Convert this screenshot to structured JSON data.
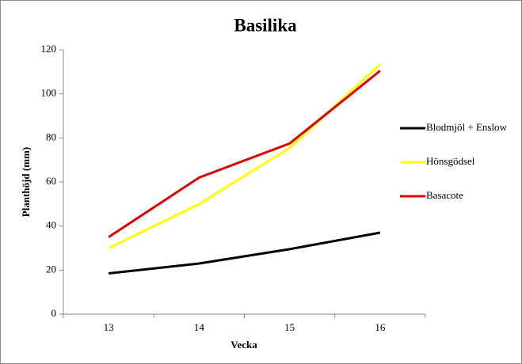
{
  "chart_data": {
    "type": "line",
    "title": "Basilika",
    "x_label": "Vecka",
    "y_label": "Planthöjd (mm)",
    "categories": [
      "13",
      "14",
      "15",
      "16"
    ],
    "series": [
      {
        "name": "Blodmjöl + Enslow",
        "color": "#000000",
        "values": [
          18.5,
          23,
          29.5,
          37
        ]
      },
      {
        "name": "Hönsgödsel",
        "color": "#ffff00",
        "values": [
          30,
          50,
          75.5,
          113.5
        ]
      },
      {
        "name": "Basacote",
        "color": "#e00000",
        "values": [
          35,
          62,
          77.5,
          110.5
        ]
      }
    ],
    "ylim": [
      0,
      120
    ],
    "yticks": [
      0,
      20,
      40,
      60,
      80,
      100,
      120
    ],
    "grid": false,
    "legend": "right"
  }
}
